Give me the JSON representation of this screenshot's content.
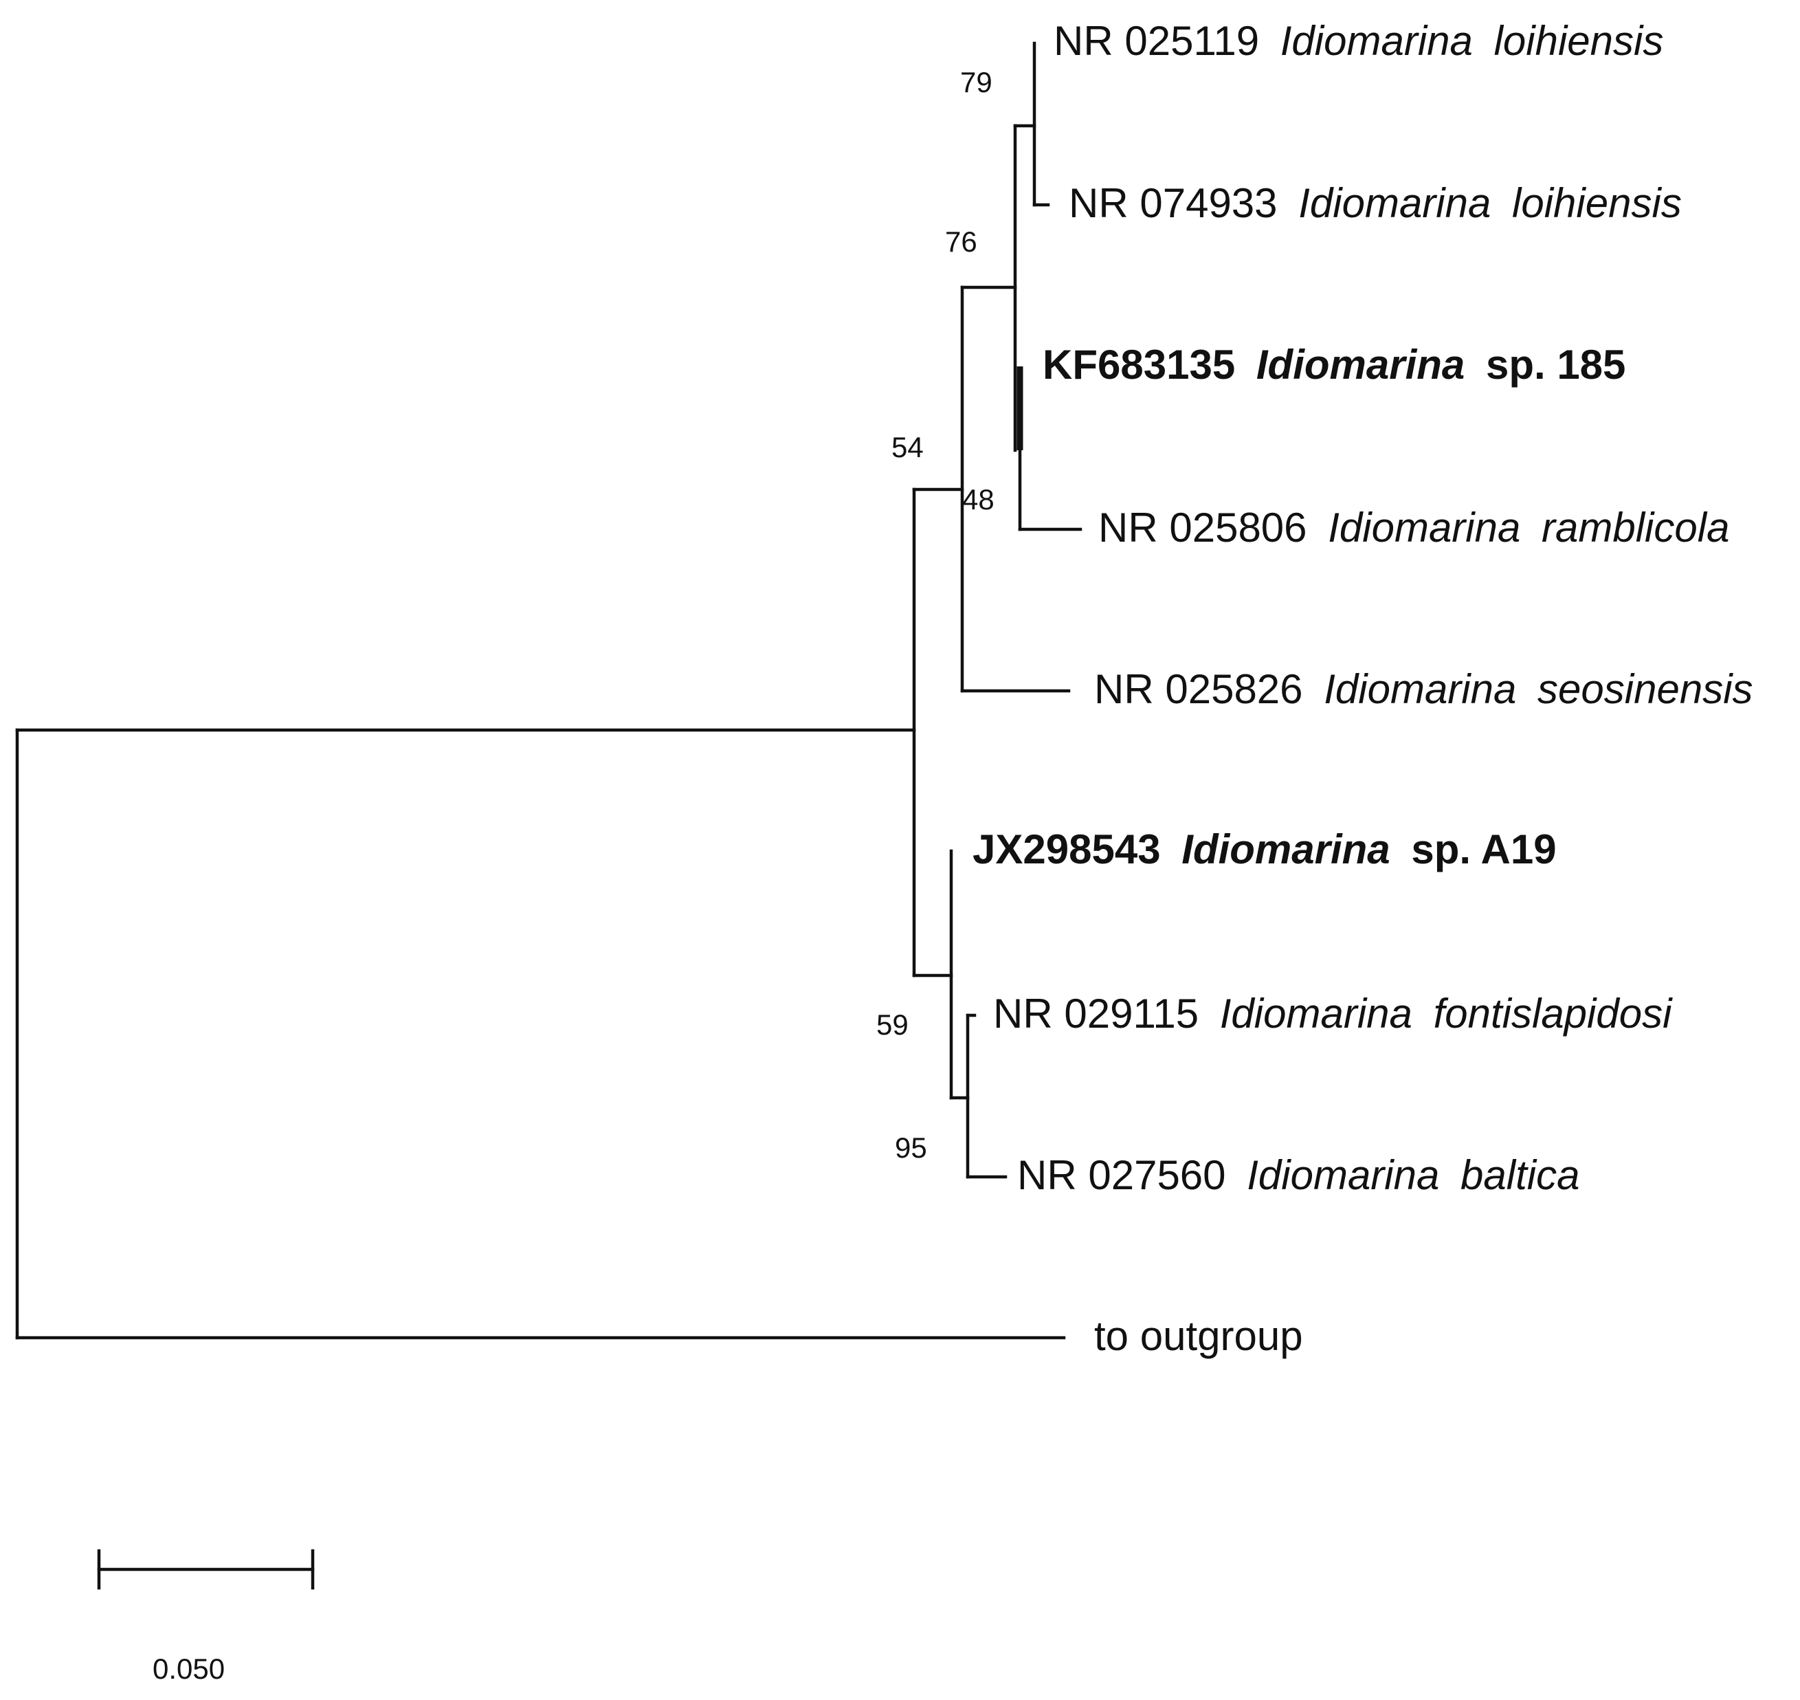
{
  "taxa": [
    {
      "accession": "NR 025119",
      "genus": "Idiomarina",
      "species": "loihiensis"
    },
    {
      "accession": "NR 074933",
      "genus": "Idiomarina",
      "species": "loihiensis"
    },
    {
      "accession": "KF683135",
      "genus": "Idiomarina",
      "species": "sp. 185",
      "highlighted": true
    },
    {
      "accession": "NR 025806",
      "genus": "Idiomarina",
      "species": "ramblicola"
    },
    {
      "accession": "NR 025826",
      "genus": "Idiomarina",
      "species": "seosinensis"
    },
    {
      "accession": "JX298543",
      "genus": "Idiomarina",
      "species": "sp. A19",
      "highlighted": true
    },
    {
      "accession": "NR 029115",
      "genus": "Idiomarina",
      "species": "fontislapidosi"
    },
    {
      "accession": "NR 027560",
      "genus": "Idiomarina",
      "species": "baltica"
    }
  ],
  "outgroup_label": "to outgroup",
  "bootstrap": {
    "loihiensis_clade": "79",
    "loihiensis_ramblicola_clade": "76",
    "seosinensis_clade": "54",
    "ramblicola_node": "48",
    "fontislapidosi_baltica_clade": "95",
    "a19_clade": "59"
  },
  "scale_bar": {
    "value": 0.05,
    "label": "0.050"
  }
}
